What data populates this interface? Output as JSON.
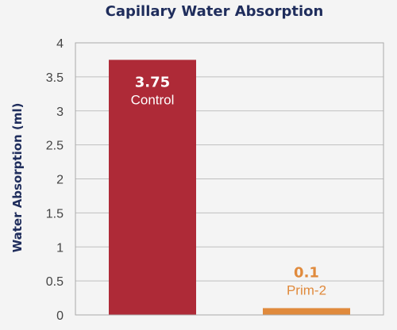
{
  "chart_data": {
    "type": "bar",
    "title": "Capillary Water Absorption",
    "xlabel": "",
    "ylabel": "Water Absorption (ml)",
    "ylim": [
      0,
      4
    ],
    "yticks": [
      "0",
      "0.5",
      "1",
      "1.5",
      "2",
      "2.5",
      "3",
      "3.5",
      "4"
    ],
    "grid": true,
    "categories": [
      "Control",
      "Prim-2"
    ],
    "values": [
      3.75,
      0.1
    ],
    "data_labels": [
      "3.75",
      "0.1"
    ],
    "colors": [
      "#ae2a37",
      "#e08a3c"
    ],
    "label_placement": [
      "inside-top",
      "above"
    ]
  }
}
